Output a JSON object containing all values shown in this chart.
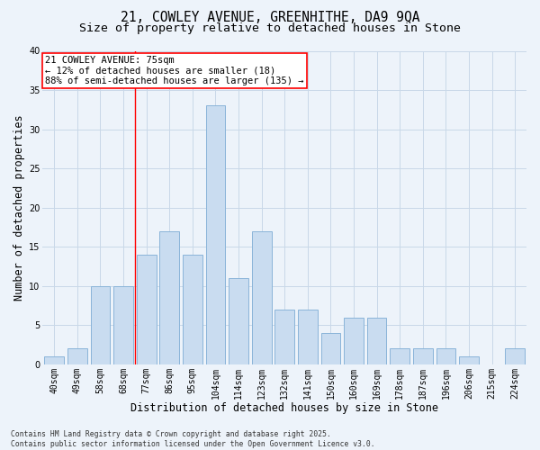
{
  "title1": "21, COWLEY AVENUE, GREENHITHE, DA9 9QA",
  "title2": "Size of property relative to detached houses in Stone",
  "xlabel": "Distribution of detached houses by size in Stone",
  "ylabel": "Number of detached properties",
  "categories": [
    "40sqm",
    "49sqm",
    "58sqm",
    "68sqm",
    "77sqm",
    "86sqm",
    "95sqm",
    "104sqm",
    "114sqm",
    "123sqm",
    "132sqm",
    "141sqm",
    "150sqm",
    "160sqm",
    "169sqm",
    "178sqm",
    "187sqm",
    "196sqm",
    "206sqm",
    "215sqm",
    "224sqm"
  ],
  "values": [
    1,
    2,
    10,
    10,
    14,
    17,
    14,
    33,
    11,
    17,
    7,
    7,
    4,
    6,
    6,
    2,
    2,
    2,
    1,
    0,
    2
  ],
  "bar_color": "#c9dcf0",
  "bar_edge_color": "#8ab4d9",
  "grid_color": "#c8d8e8",
  "background_color": "#edf3fa",
  "ylim": [
    0,
    40
  ],
  "yticks": [
    0,
    5,
    10,
    15,
    20,
    25,
    30,
    35,
    40
  ],
  "red_line_x": 3.5,
  "annotation_line1": "21 COWLEY AVENUE: 75sqm",
  "annotation_line2": "← 12% of detached houses are smaller (18)",
  "annotation_line3": "88% of semi-detached houses are larger (135) →",
  "footer_text": "Contains HM Land Registry data © Crown copyright and database right 2025.\nContains public sector information licensed under the Open Government Licence v3.0.",
  "title_fontsize": 10.5,
  "subtitle_fontsize": 9.5,
  "tick_fontsize": 7,
  "label_fontsize": 8.5,
  "annot_fontsize": 7.5,
  "footer_fontsize": 5.8
}
